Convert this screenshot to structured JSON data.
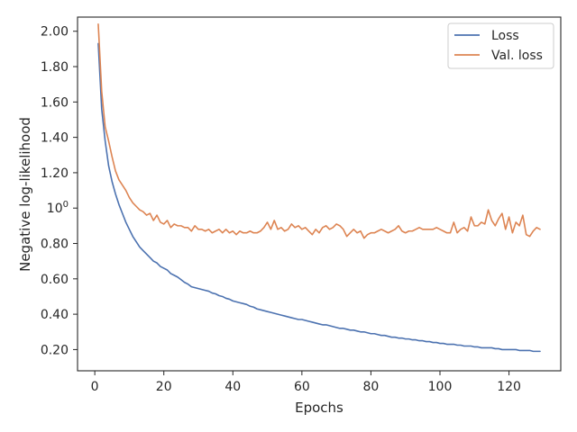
{
  "chart_data": {
    "type": "line",
    "title": "",
    "xlabel": "Epochs",
    "ylabel": "Negative log-likelihood",
    "xlim": [
      -5,
      135
    ],
    "ylim": [
      0.08,
      2.08
    ],
    "xticks": [
      0,
      20,
      40,
      60,
      80,
      100,
      120
    ],
    "xtick_labels": [
      "0",
      "20",
      "40",
      "60",
      "80",
      "100",
      "120"
    ],
    "yticks": [
      0.2,
      0.4,
      0.6,
      0.8,
      1.0,
      1.2,
      1.4,
      1.6,
      1.8,
      2.0
    ],
    "ytick_labels": [
      "0.20",
      "0.40",
      "0.60",
      "0.80",
      "10^0",
      "1.20",
      "1.40",
      "1.60",
      "1.80",
      "2.00"
    ],
    "grid": false,
    "legend_position": "top-right",
    "series": [
      {
        "name": "Loss",
        "color": "#4c72b0",
        "x": [
          1,
          2,
          3,
          4,
          5,
          6,
          7,
          8,
          9,
          10,
          11,
          12,
          13,
          14,
          15,
          16,
          17,
          18,
          19,
          20,
          21,
          22,
          23,
          24,
          25,
          26,
          27,
          28,
          29,
          30,
          31,
          32,
          33,
          34,
          35,
          36,
          37,
          38,
          39,
          40,
          41,
          42,
          43,
          44,
          45,
          46,
          47,
          48,
          49,
          50,
          51,
          52,
          53,
          54,
          55,
          56,
          57,
          58,
          59,
          60,
          61,
          62,
          63,
          64,
          65,
          66,
          67,
          68,
          69,
          70,
          71,
          72,
          73,
          74,
          75,
          76,
          77,
          78,
          79,
          80,
          81,
          82,
          83,
          84,
          85,
          86,
          87,
          88,
          89,
          90,
          91,
          92,
          93,
          94,
          95,
          96,
          97,
          98,
          99,
          100,
          101,
          102,
          103,
          104,
          105,
          106,
          107,
          108,
          109,
          110,
          111,
          112,
          113,
          114,
          115,
          116,
          117,
          118,
          119,
          120,
          121,
          122,
          123,
          124,
          125,
          126,
          127,
          128,
          129
        ],
        "values": [
          1.93,
          1.56,
          1.38,
          1.24,
          1.15,
          1.08,
          1.02,
          0.97,
          0.92,
          0.88,
          0.84,
          0.81,
          0.78,
          0.76,
          0.74,
          0.72,
          0.7,
          0.69,
          0.67,
          0.66,
          0.65,
          0.63,
          0.62,
          0.61,
          0.595,
          0.58,
          0.57,
          0.555,
          0.55,
          0.545,
          0.54,
          0.535,
          0.53,
          0.52,
          0.515,
          0.505,
          0.5,
          0.49,
          0.485,
          0.475,
          0.47,
          0.465,
          0.46,
          0.455,
          0.445,
          0.44,
          0.43,
          0.425,
          0.42,
          0.415,
          0.41,
          0.405,
          0.4,
          0.395,
          0.39,
          0.385,
          0.38,
          0.375,
          0.37,
          0.37,
          0.365,
          0.36,
          0.355,
          0.35,
          0.345,
          0.34,
          0.34,
          0.335,
          0.33,
          0.325,
          0.32,
          0.32,
          0.315,
          0.31,
          0.31,
          0.305,
          0.3,
          0.3,
          0.295,
          0.29,
          0.29,
          0.285,
          0.28,
          0.28,
          0.275,
          0.27,
          0.27,
          0.265,
          0.265,
          0.26,
          0.26,
          0.255,
          0.255,
          0.25,
          0.25,
          0.245,
          0.245,
          0.24,
          0.24,
          0.235,
          0.235,
          0.23,
          0.23,
          0.23,
          0.225,
          0.225,
          0.22,
          0.22,
          0.22,
          0.215,
          0.215,
          0.21,
          0.21,
          0.21,
          0.21,
          0.205,
          0.205,
          0.2,
          0.2,
          0.2,
          0.2,
          0.2,
          0.195,
          0.195,
          0.195,
          0.195,
          0.19,
          0.19,
          0.19
        ]
      },
      {
        "name": "Val. loss",
        "color": "#dd8452",
        "x": [
          1,
          2,
          3,
          4,
          5,
          6,
          7,
          8,
          9,
          10,
          11,
          12,
          13,
          14,
          15,
          16,
          17,
          18,
          19,
          20,
          21,
          22,
          23,
          24,
          25,
          26,
          27,
          28,
          29,
          30,
          31,
          32,
          33,
          34,
          35,
          36,
          37,
          38,
          39,
          40,
          41,
          42,
          43,
          44,
          45,
          46,
          47,
          48,
          49,
          50,
          51,
          52,
          53,
          54,
          55,
          56,
          57,
          58,
          59,
          60,
          61,
          62,
          63,
          64,
          65,
          66,
          67,
          68,
          69,
          70,
          71,
          72,
          73,
          74,
          75,
          76,
          77,
          78,
          79,
          80,
          81,
          82,
          83,
          84,
          85,
          86,
          87,
          88,
          89,
          90,
          91,
          92,
          93,
          94,
          95,
          96,
          97,
          98,
          99,
          100,
          101,
          102,
          103,
          104,
          105,
          106,
          107,
          108,
          109,
          110,
          111,
          112,
          113,
          114,
          115,
          116,
          117,
          118,
          119,
          120,
          121,
          122,
          123,
          124,
          125,
          126,
          127,
          128,
          129
        ],
        "values": [
          2.04,
          1.66,
          1.46,
          1.38,
          1.29,
          1.21,
          1.16,
          1.13,
          1.1,
          1.06,
          1.03,
          1.01,
          0.99,
          0.98,
          0.96,
          0.97,
          0.93,
          0.96,
          0.92,
          0.91,
          0.93,
          0.89,
          0.91,
          0.9,
          0.9,
          0.89,
          0.89,
          0.87,
          0.9,
          0.88,
          0.88,
          0.87,
          0.88,
          0.86,
          0.87,
          0.88,
          0.86,
          0.88,
          0.86,
          0.87,
          0.85,
          0.87,
          0.86,
          0.86,
          0.87,
          0.86,
          0.86,
          0.87,
          0.89,
          0.92,
          0.88,
          0.93,
          0.88,
          0.89,
          0.87,
          0.88,
          0.91,
          0.89,
          0.9,
          0.88,
          0.89,
          0.87,
          0.85,
          0.88,
          0.86,
          0.89,
          0.9,
          0.88,
          0.89,
          0.91,
          0.9,
          0.88,
          0.84,
          0.86,
          0.88,
          0.86,
          0.87,
          0.83,
          0.85,
          0.86,
          0.86,
          0.87,
          0.88,
          0.87,
          0.86,
          0.87,
          0.88,
          0.9,
          0.87,
          0.86,
          0.87,
          0.87,
          0.88,
          0.89,
          0.88,
          0.88,
          0.88,
          0.88,
          0.89,
          0.88,
          0.87,
          0.86,
          0.86,
          0.92,
          0.86,
          0.88,
          0.89,
          0.87,
          0.95,
          0.9,
          0.9,
          0.92,
          0.91,
          0.99,
          0.93,
          0.9,
          0.94,
          0.97,
          0.88,
          0.95,
          0.86,
          0.92,
          0.9,
          0.96,
          0.85,
          0.84,
          0.87,
          0.89,
          0.88
        ]
      }
    ]
  }
}
